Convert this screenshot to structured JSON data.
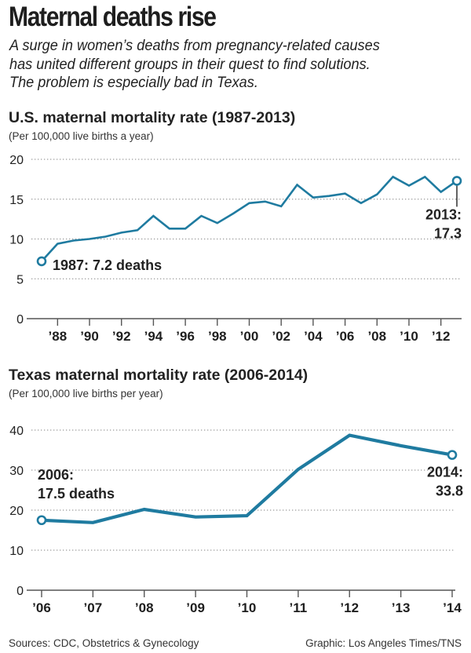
{
  "headline": "Maternal deaths rise",
  "dek": [
    "A surge in women’s deaths from pregnancy-related causes",
    "has united different groups in their quest to find solutions.",
    "The problem is especially bad in Texas."
  ],
  "colors": {
    "line": "#1f7ba0",
    "grid": "#9a9a9a",
    "axis": "#555555",
    "text": "#222222"
  },
  "footer": {
    "sources": "Sources: CDC, Obstetrics & Gynecology",
    "credit": "Graphic: Los Angeles Times/TNS"
  },
  "chart_data": [
    {
      "type": "line",
      "title": "U.S. maternal mortality rate (1987-2013)",
      "subtitle": "(Per 100,000 live births a year)",
      "xlabel": "",
      "ylabel": "",
      "x": [
        1987,
        1988,
        1989,
        1990,
        1991,
        1992,
        1993,
        1994,
        1995,
        1996,
        1997,
        1998,
        1999,
        2000,
        2001,
        2002,
        2003,
        2004,
        2005,
        2006,
        2007,
        2008,
        2009,
        2010,
        2011,
        2012,
        2013
      ],
      "series": [
        {
          "name": "U.S.",
          "values": [
            7.2,
            9.4,
            9.8,
            10.0,
            10.3,
            10.8,
            11.1,
            12.9,
            11.3,
            11.3,
            12.9,
            12.0,
            13.2,
            14.5,
            14.7,
            14.1,
            16.8,
            15.2,
            15.4,
            15.7,
            14.5,
            15.6,
            17.8,
            16.7,
            17.8,
            15.9,
            17.3
          ]
        }
      ],
      "xlim": [
        1987,
        2013
      ],
      "ylim": [
        0,
        20
      ],
      "yticks": [
        0,
        5,
        10,
        15,
        20
      ],
      "ytick_labels": [
        "0",
        "5",
        "10",
        "15",
        "20"
      ],
      "xticks": [
        1988,
        1990,
        1992,
        1994,
        1996,
        1998,
        2000,
        2002,
        2004,
        2006,
        2008,
        2010,
        2012
      ],
      "xtick_labels": [
        "’88",
        "’90",
        "’92",
        "’94",
        "’96",
        "’98",
        "’00",
        "’02",
        "’04",
        "’06",
        "’08",
        "’10",
        "’12"
      ],
      "grid": "horizontal dotted",
      "legend": "none",
      "annotations": [
        {
          "x": 1987,
          "y": 7.2,
          "lines": [
            "1987: 7.2 deaths"
          ],
          "placement": "right"
        },
        {
          "x": 2013,
          "y": 17.3,
          "lines": [
            "2013:",
            "17.3"
          ],
          "placement": "below-left"
        }
      ]
    },
    {
      "type": "line",
      "title": "Texas maternal mortality rate (2006-2014)",
      "subtitle": "(Per 100,000 live births per year)",
      "xlabel": "",
      "ylabel": "",
      "x": [
        2006,
        2007,
        2008,
        2009,
        2010,
        2011,
        2012,
        2013,
        2014
      ],
      "series": [
        {
          "name": "Texas",
          "values": [
            17.5,
            16.9,
            20.2,
            18.3,
            18.6,
            30.2,
            38.7,
            36.1,
            33.8
          ]
        }
      ],
      "xlim": [
        2006,
        2014
      ],
      "ylim": [
        0,
        40
      ],
      "yticks": [
        0,
        10,
        20,
        30,
        40
      ],
      "ytick_labels": [
        "0",
        "10",
        "20",
        "30",
        "40"
      ],
      "xticks": [
        2006,
        2007,
        2008,
        2009,
        2010,
        2011,
        2012,
        2013,
        2014
      ],
      "xtick_labels": [
        "’06",
        "’07",
        "’08",
        "’09",
        "’10",
        "’11",
        "’12",
        "’13",
        "’14"
      ],
      "grid": "horizontal dotted",
      "legend": "none",
      "annotations": [
        {
          "x": 2006,
          "y": 17.5,
          "lines": [
            "2006:",
            "17.5 deaths"
          ],
          "placement": "above"
        },
        {
          "x": 2014,
          "y": 33.8,
          "lines": [
            "2014:",
            "33.8"
          ],
          "placement": "below-left"
        }
      ]
    }
  ]
}
